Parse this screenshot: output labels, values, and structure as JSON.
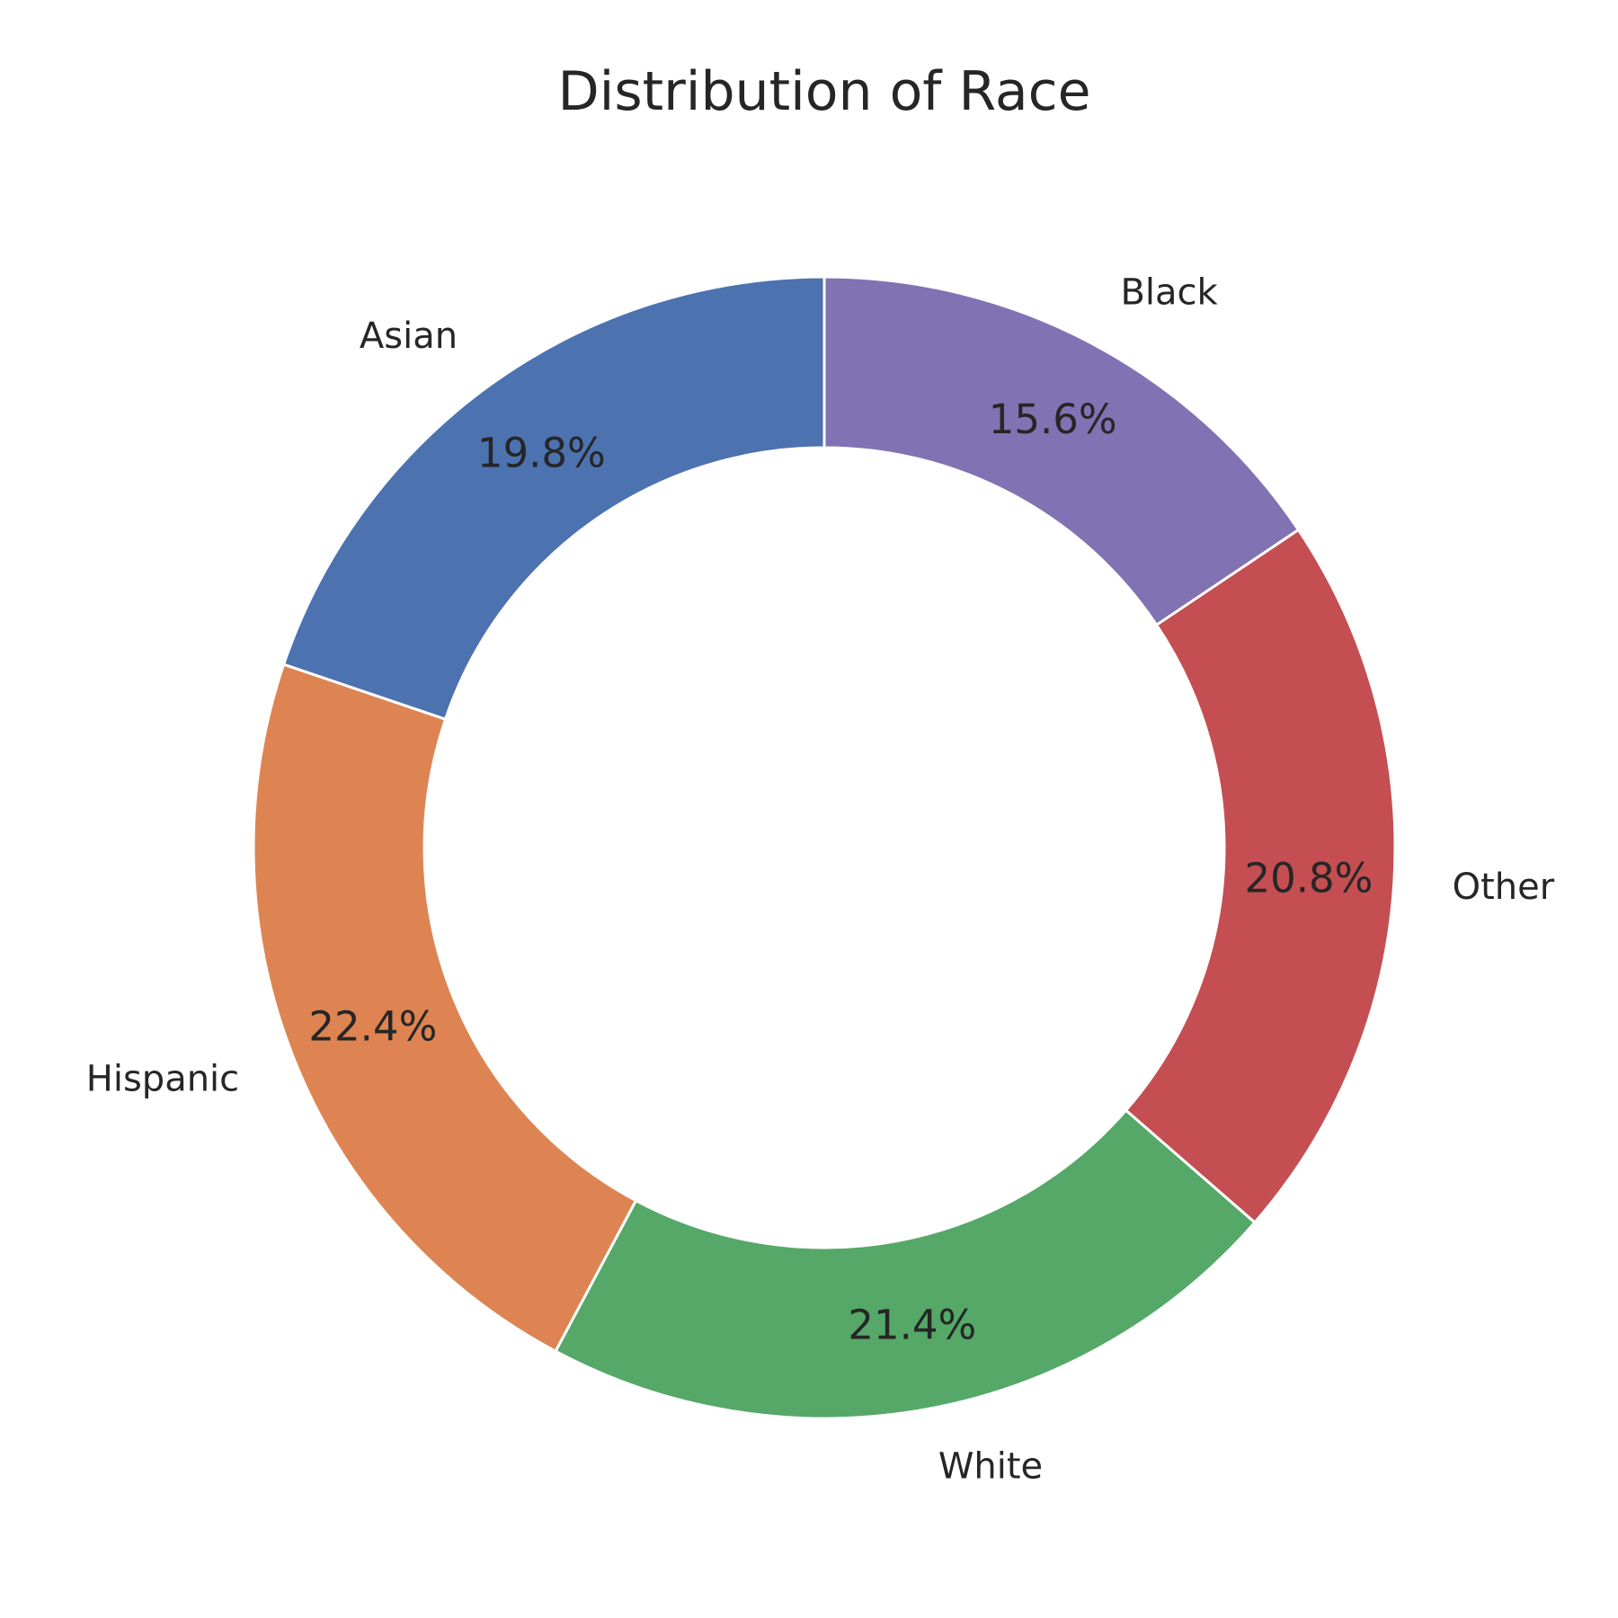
{
  "chart_data": {
    "type": "pie",
    "title": "Distribution of Race",
    "donut": true,
    "start_angle_deg": 90,
    "direction": "counterclockwise",
    "categories": [
      "Asian",
      "Hispanic",
      "White",
      "Other",
      "Black"
    ],
    "values": [
      19.8,
      22.4,
      21.4,
      20.8,
      15.6
    ],
    "percent_labels": [
      "19.8%",
      "22.4%",
      "21.4%",
      "20.8%",
      "15.6%"
    ],
    "colors": [
      "#4c72b0",
      "#dd8452",
      "#55a868",
      "#c44e52",
      "#8172b3"
    ]
  }
}
